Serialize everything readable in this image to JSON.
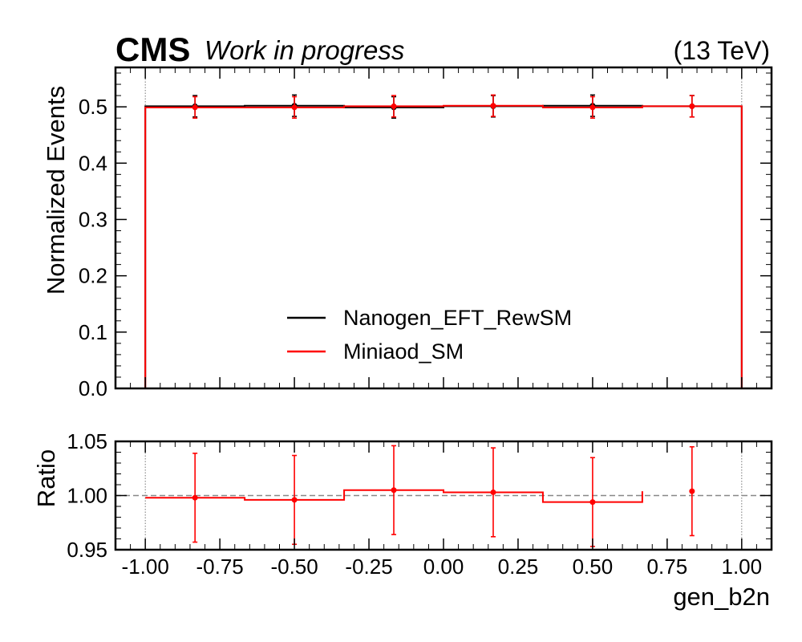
{
  "header": {
    "experiment": "CMS",
    "status": "Work in progress",
    "energy": "(13 TeV)"
  },
  "chart_data": [
    {
      "type": "step",
      "panel": "main",
      "xlabel": "gen_b2n",
      "ylabel": "Normalized Events",
      "xlim": [
        -1.1,
        1.1
      ],
      "ylim": [
        0.0,
        0.57
      ],
      "yticks": [
        0.0,
        0.1,
        0.2,
        0.3,
        0.4,
        0.5
      ],
      "ytick_labels": [
        "0.0",
        "0.1",
        "0.2",
        "0.3",
        "0.4",
        "0.5"
      ],
      "bin_edges": [
        -1.0,
        -0.6667,
        -0.3333,
        0.0,
        0.3333,
        0.6667,
        1.0
      ],
      "bin_centers": [
        -0.8333,
        -0.5,
        -0.1667,
        0.1667,
        0.5,
        0.8333
      ],
      "series": [
        {
          "name": "Nanogen_EFT_RewSM",
          "color": "#000000",
          "values": [
            0.501,
            0.502,
            0.499,
            0.501,
            0.502,
            0.501
          ],
          "errors": [
            0.019,
            0.019,
            0.019,
            0.019,
            0.019,
            0.019
          ]
        },
        {
          "name": "Miniaod_SM",
          "color": "#ff0000",
          "values": [
            0.499,
            0.499,
            0.501,
            0.502,
            0.499,
            0.501
          ],
          "errors": [
            0.019,
            0.019,
            0.019,
            0.019,
            0.019,
            0.019
          ]
        }
      ],
      "legend": {
        "placement": "lower-center"
      },
      "boundary_lines": [
        -1.0,
        1.0
      ]
    },
    {
      "type": "step",
      "panel": "ratio",
      "ylabel": "Ratio",
      "xlabel": "gen_b2n",
      "xlim": [
        -1.1,
        1.1
      ],
      "ylim": [
        0.95,
        1.05
      ],
      "yticks": [
        0.95,
        1.0,
        1.05
      ],
      "ytick_labels": [
        "0.95",
        "1.00",
        "1.05"
      ],
      "xticks": [
        -1.0,
        -0.75,
        -0.5,
        -0.25,
        0.0,
        0.25,
        0.5,
        0.75,
        1.0
      ],
      "xtick_labels": [
        "-1.00",
        "-0.75",
        "-0.50",
        "-0.25",
        "0.00",
        "0.25",
        "0.50",
        "0.75",
        "1.00"
      ],
      "reference_line": 1.0,
      "color": "#ff0000",
      "bin_edges": [
        -1.0,
        -0.6667,
        -0.3333,
        0.0,
        0.3333,
        0.6667
      ],
      "step_end": 0.6667,
      "points_x": [
        -0.8333,
        -0.5,
        -0.1667,
        0.1667,
        0.5,
        0.8333
      ],
      "points_y": [
        0.998,
        0.996,
        1.005,
        1.003,
        0.994,
        1.004
      ],
      "errors": [
        0.041,
        0.041,
        0.041,
        0.041,
        0.041,
        0.041
      ]
    }
  ]
}
